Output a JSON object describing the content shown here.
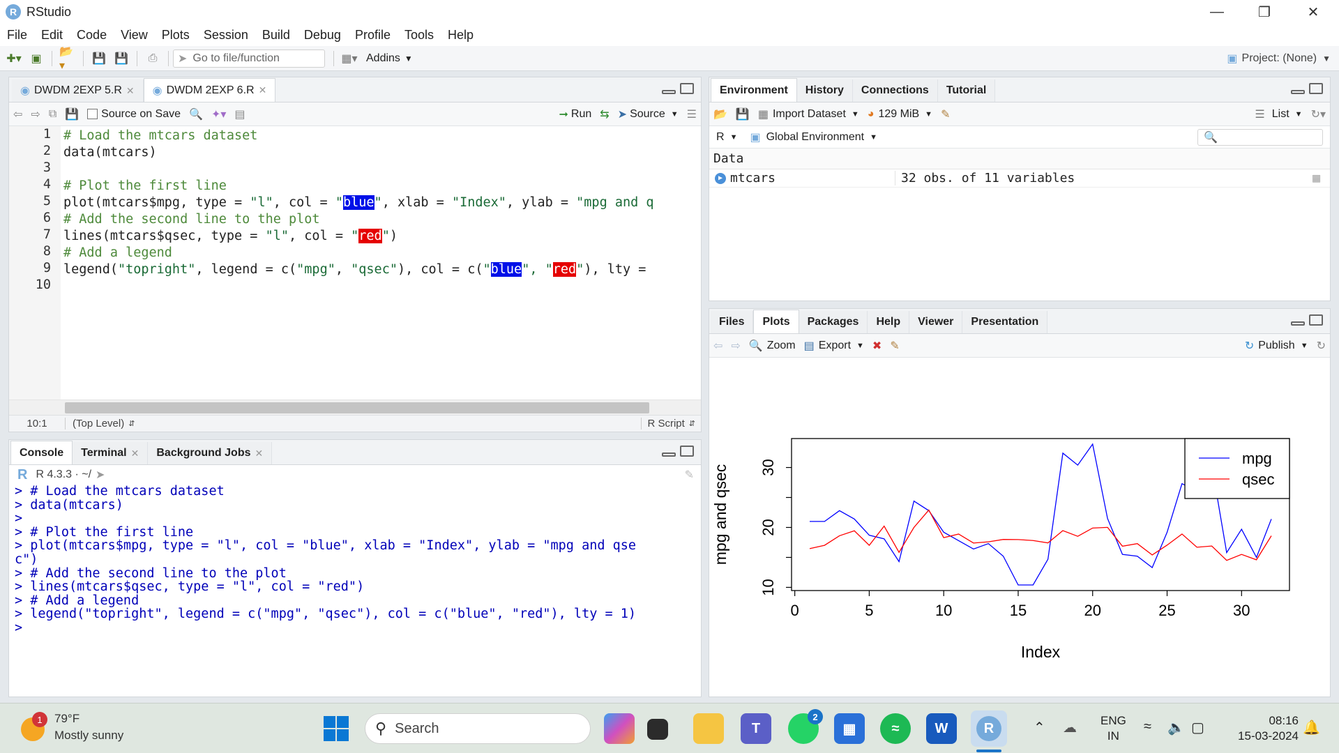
{
  "window": {
    "title": "RStudio"
  },
  "menu": [
    "File",
    "Edit",
    "Code",
    "View",
    "Plots",
    "Session",
    "Build",
    "Debug",
    "Profile",
    "Tools",
    "Help"
  ],
  "toolbar": {
    "goto_placeholder": "Go to file/function",
    "addins": "Addins",
    "project": "Project: (None)"
  },
  "editor": {
    "tabs": [
      {
        "label": "DWDM 2EXP 5.R"
      },
      {
        "label": "DWDM 2EXP 6.R"
      }
    ],
    "source_on_save": "Source on Save",
    "run": "Run",
    "source": "Source",
    "lines": [
      {
        "n": "1",
        "parts": [
          {
            "t": "# Load the mtcars dataset",
            "c": "cmt"
          }
        ]
      },
      {
        "n": "2",
        "parts": [
          {
            "t": "data(mtcars)",
            "c": ""
          }
        ]
      },
      {
        "n": "3",
        "parts": [
          {
            "t": "",
            "c": ""
          }
        ]
      },
      {
        "n": "4",
        "parts": [
          {
            "t": "# Plot the first line",
            "c": "cmt"
          }
        ]
      },
      {
        "n": "5",
        "parts": [
          {
            "t": "plot(mtcars$mpg, type = ",
            "c": ""
          },
          {
            "t": "\"l\"",
            "c": "str"
          },
          {
            "t": ", col = ",
            "c": ""
          },
          {
            "t": "\"",
            "c": "str"
          },
          {
            "t": "blue",
            "c": "hl-blue"
          },
          {
            "t": "\"",
            "c": "str"
          },
          {
            "t": ", xlab = ",
            "c": ""
          },
          {
            "t": "\"Index\"",
            "c": "str"
          },
          {
            "t": ", ylab = ",
            "c": ""
          },
          {
            "t": "\"mpg and q",
            "c": "str"
          }
        ]
      },
      {
        "n": "6",
        "parts": [
          {
            "t": "# Add the second line to the plot",
            "c": "cmt"
          }
        ]
      },
      {
        "n": "7",
        "parts": [
          {
            "t": "lines(mtcars$qsec, type = ",
            "c": ""
          },
          {
            "t": "\"l\"",
            "c": "str"
          },
          {
            "t": ", col = ",
            "c": ""
          },
          {
            "t": "\"",
            "c": "str"
          },
          {
            "t": "red",
            "c": "hl-red"
          },
          {
            "t": "\"",
            "c": "str"
          },
          {
            "t": ")",
            "c": ""
          }
        ]
      },
      {
        "n": "8",
        "parts": [
          {
            "t": "# Add a legend",
            "c": "cmt"
          }
        ]
      },
      {
        "n": "9",
        "parts": [
          {
            "t": "legend(",
            "c": ""
          },
          {
            "t": "\"topright\"",
            "c": "str"
          },
          {
            "t": ", legend = c(",
            "c": ""
          },
          {
            "t": "\"mpg\"",
            "c": "str"
          },
          {
            "t": ", ",
            "c": ""
          },
          {
            "t": "\"qsec\"",
            "c": "str"
          },
          {
            "t": "), col = c(",
            "c": ""
          },
          {
            "t": "\"",
            "c": "str"
          },
          {
            "t": "blue",
            "c": "hl-blue"
          },
          {
            "t": "\", \"",
            "c": "str"
          },
          {
            "t": "red",
            "c": "hl-red"
          },
          {
            "t": "\"",
            "c": "str"
          },
          {
            "t": "), lty =",
            "c": ""
          }
        ]
      },
      {
        "n": "10",
        "parts": [
          {
            "t": "",
            "c": ""
          }
        ]
      }
    ],
    "status_pos": "10:1",
    "status_scope": "(Top Level)",
    "status_type": "R Script"
  },
  "console": {
    "tabs": [
      {
        "label": "Console"
      },
      {
        "label": "Terminal"
      },
      {
        "label": "Background Jobs"
      }
    ],
    "version": "R 4.3.3 · ~/",
    "lines": [
      "> # Load the mtcars dataset",
      "> data(mtcars)",
      ">",
      "> # Plot the first line",
      "> plot(mtcars$mpg, type = \"l\", col = \"blue\", xlab = \"Index\", ylab = \"mpg and qse",
      "c\")",
      "> # Add the second line to the plot",
      "> lines(mtcars$qsec, type = \"l\", col = \"red\")",
      "> # Add a legend",
      "> legend(\"topright\", legend = c(\"mpg\", \"qsec\"), col = c(\"blue\", \"red\"), lty = 1)",
      "> "
    ]
  },
  "environment": {
    "tabs": [
      {
        "label": "Environment"
      },
      {
        "label": "History"
      },
      {
        "label": "Connections"
      },
      {
        "label": "Tutorial"
      }
    ],
    "import": "Import Dataset",
    "memory": "129 MiB",
    "view_mode": "List",
    "lang": "R",
    "scope": "Global Environment",
    "section": "Data",
    "rows": [
      {
        "name": "mtcars",
        "value": "32 obs. of 11 variables"
      }
    ]
  },
  "files": {
    "tabs": [
      {
        "label": "Files"
      },
      {
        "label": "Plots"
      },
      {
        "label": "Packages"
      },
      {
        "label": "Help"
      },
      {
        "label": "Viewer"
      },
      {
        "label": "Presentation"
      }
    ],
    "zoom": "Zoom",
    "export": "Export",
    "publish": "Publish"
  },
  "chart_data": {
    "type": "line",
    "xlabel": "Index",
    "ylabel": "mpg and qsec",
    "xlim": [
      1,
      32
    ],
    "ylim": [
      10.4,
      33.9
    ],
    "xticks": [
      "0",
      "5",
      "10",
      "15",
      "20",
      "25",
      "30"
    ],
    "yticks": [
      "10",
      "20",
      "30"
    ],
    "legend_position": "top-right",
    "series": [
      {
        "name": "mpg",
        "color": "#0000ff",
        "values": [
          21.0,
          21.0,
          22.8,
          21.4,
          18.7,
          18.1,
          14.3,
          24.4,
          22.8,
          19.2,
          17.8,
          16.4,
          17.3,
          15.2,
          10.4,
          10.4,
          14.7,
          32.4,
          30.4,
          33.9,
          21.5,
          15.5,
          15.2,
          13.3,
          19.2,
          27.3,
          26.0,
          30.4,
          15.8,
          19.7,
          15.0,
          21.4
        ]
      },
      {
        "name": "qsec",
        "color": "#ff0000",
        "values": [
          16.46,
          17.02,
          18.61,
          19.44,
          17.02,
          20.22,
          15.84,
          20.0,
          22.9,
          18.3,
          18.9,
          17.4,
          17.6,
          18.0,
          17.98,
          17.82,
          17.42,
          19.47,
          18.52,
          19.9,
          20.01,
          16.87,
          17.3,
          15.41,
          17.05,
          18.9,
          16.7,
          16.9,
          14.5,
          15.5,
          14.6,
          18.6
        ]
      }
    ]
  },
  "taskbar": {
    "weather_temp": "79°F",
    "weather_desc": "Mostly sunny",
    "weather_badge": "1",
    "search": "Search",
    "whatsapp_badge": "2",
    "lang_1": "ENG",
    "lang_2": "IN",
    "time": "08:16",
    "date": "15-03-2024"
  }
}
